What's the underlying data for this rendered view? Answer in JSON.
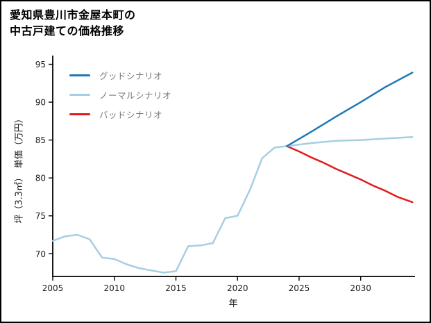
{
  "header": {
    "title_line1": "愛知県豊川市金屋本町の",
    "title_line2": "中古戸建ての価格推移"
  },
  "chart_data": {
    "type": "line",
    "title": "愛知県豊川市金屋本町の中古戸建ての価格推移",
    "xlabel": "年",
    "ylabel": "坪（3.3㎡）　単価（万円）",
    "xlim": [
      2005,
      2034.3
    ],
    "ylim": [
      67.0,
      95.6
    ],
    "xticks": [
      2005,
      2010,
      2015,
      2020,
      2025,
      2030
    ],
    "yticks": [
      70,
      75,
      80,
      85,
      90,
      95
    ],
    "grid": false,
    "legend_position": "upper-left",
    "legend": [
      {
        "label": "グッドシナリオ",
        "color": "#1f78b4"
      },
      {
        "label": "ノーマルシナリオ",
        "color": "#a6cee3"
      },
      {
        "label": "バッドシナリオ",
        "color": "#e31a1c"
      }
    ],
    "series": [
      {
        "key": "bad",
        "name": "バッドシナリオ",
        "color": "#e31a1c",
        "line_width": 2.5,
        "x": [
          2024,
          2025,
          2026,
          2027,
          2028,
          2029,
          2030,
          2031,
          2032,
          2033,
          2034.2
        ],
        "y": [
          84.2,
          83.5,
          82.7,
          82.0,
          81.2,
          80.5,
          79.8,
          79.0,
          78.3,
          77.5,
          76.8
        ]
      },
      {
        "key": "normal",
        "name": "ノーマルシナリオ",
        "color": "#a6cee3",
        "line_width": 2.5,
        "x": [
          2005,
          2006,
          2007,
          2008,
          2009,
          2010,
          2011,
          2012,
          2013,
          2014,
          2015,
          2016,
          2017,
          2018,
          2019,
          2020,
          2021,
          2022,
          2023,
          2024,
          2026,
          2028,
          2030,
          2032,
          2034.2
        ],
        "y": [
          71.7,
          72.3,
          72.5,
          71.9,
          69.5,
          69.3,
          68.6,
          68.1,
          67.8,
          67.5,
          67.7,
          71.0,
          71.1,
          71.4,
          74.7,
          75.0,
          78.4,
          82.6,
          84.0,
          84.2,
          84.6,
          84.9,
          85.0,
          85.2,
          85.4
        ]
      },
      {
        "key": "good",
        "name": "グッドシナリオ",
        "color": "#1f78b4",
        "line_width": 2.5,
        "x": [
          2024,
          2026,
          2028,
          2030,
          2032,
          2034.2
        ],
        "y": [
          84.2,
          86.1,
          88.1,
          90.0,
          92.0,
          93.9
        ]
      }
    ]
  }
}
